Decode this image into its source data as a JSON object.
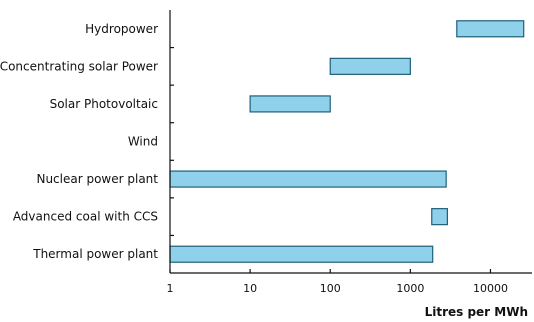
{
  "chart_data": {
    "type": "bar",
    "orientation": "horizontal-range",
    "title": "",
    "xlabel": "Litres per MWh",
    "ylabel": "",
    "x_scale": "log",
    "xlim": [
      1,
      33000
    ],
    "xticks": [
      1,
      10,
      100,
      1000,
      10000
    ],
    "xtick_labels": [
      "1",
      "10",
      "100",
      "1000",
      "10000"
    ],
    "grid": false,
    "colors": {
      "bar_fill": "#8fd0ea",
      "bar_stroke": "#1f5f7a",
      "axis": "#111111"
    },
    "categories": [
      "Hydropower",
      "Concentrating solar Power",
      "Solar Photovoltaic",
      "Wind",
      "Nuclear power plant",
      "Advanced coal with CCS",
      "Thermal power plant"
    ],
    "ranges": [
      [
        3800,
        26000
      ],
      [
        100,
        1000
      ],
      [
        10,
        100
      ],
      null,
      [
        1,
        2800
      ],
      [
        1850,
        2900
      ],
      [
        1,
        1900
      ]
    ]
  }
}
